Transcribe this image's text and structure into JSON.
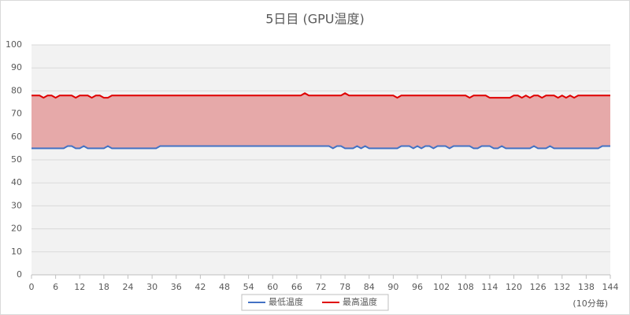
{
  "chart_data": {
    "type": "line",
    "title": "5日目 (GPU温度)",
    "x_unit_label": "(10分毎)",
    "x": [
      0,
      1,
      2,
      3,
      4,
      5,
      6,
      7,
      8,
      9,
      10,
      11,
      12,
      13,
      14,
      15,
      16,
      17,
      18,
      19,
      20,
      21,
      22,
      23,
      24,
      25,
      26,
      27,
      28,
      29,
      30,
      31,
      32,
      33,
      34,
      35,
      36,
      37,
      38,
      39,
      40,
      41,
      42,
      43,
      44,
      45,
      46,
      47,
      48,
      49,
      50,
      51,
      52,
      53,
      54,
      55,
      56,
      57,
      58,
      59,
      60,
      61,
      62,
      63,
      64,
      65,
      66,
      67,
      68,
      69,
      70,
      71,
      72,
      73,
      74,
      75,
      76,
      77,
      78,
      79,
      80,
      81,
      82,
      83,
      84,
      85,
      86,
      87,
      88,
      89,
      90,
      91,
      92,
      93,
      94,
      95,
      96,
      97,
      98,
      99,
      100,
      101,
      102,
      103,
      104,
      105,
      106,
      107,
      108,
      109,
      110,
      111,
      112,
      113,
      114,
      115,
      116,
      117,
      118,
      119,
      120,
      121,
      122,
      123,
      124,
      125,
      126,
      127,
      128,
      129,
      130,
      131,
      132,
      133,
      134,
      135,
      136,
      137,
      138,
      139,
      140,
      141,
      142,
      143,
      144
    ],
    "series": [
      {
        "name": "最低温度",
        "color": "#4472c4",
        "values": [
          55,
          55,
          55,
          55,
          55,
          55,
          55,
          55,
          55,
          56,
          56,
          55,
          55,
          56,
          55,
          55,
          55,
          55,
          55,
          56,
          55,
          55,
          55,
          55,
          55,
          55,
          55,
          55,
          55,
          55,
          55,
          55,
          56,
          56,
          56,
          56,
          56,
          56,
          56,
          56,
          56,
          56,
          56,
          56,
          56,
          56,
          56,
          56,
          56,
          56,
          56,
          56,
          56,
          56,
          56,
          56,
          56,
          56,
          56,
          56,
          56,
          56,
          56,
          56,
          56,
          56,
          56,
          56,
          56,
          56,
          56,
          56,
          56,
          56,
          56,
          55,
          56,
          56,
          55,
          55,
          55,
          56,
          55,
          56,
          55,
          55,
          55,
          55,
          55,
          55,
          55,
          55,
          56,
          56,
          56,
          55,
          56,
          55,
          56,
          56,
          55,
          56,
          56,
          56,
          55,
          56,
          56,
          56,
          56,
          56,
          55,
          55,
          56,
          56,
          56,
          55,
          55,
          56,
          55,
          55,
          55,
          55,
          55,
          55,
          55,
          56,
          55,
          55,
          55,
          56,
          55,
          55,
          55,
          55,
          55,
          55,
          55,
          55,
          55,
          55,
          55,
          55,
          56,
          56,
          56
        ]
      },
      {
        "name": "最高温度",
        "color": "#e00000",
        "values": [
          78,
          78,
          78,
          77,
          78,
          78,
          77,
          78,
          78,
          78,
          78,
          77,
          78,
          78,
          78,
          77,
          78,
          78,
          77,
          77,
          78,
          78,
          78,
          78,
          78,
          78,
          78,
          78,
          78,
          78,
          78,
          78,
          78,
          78,
          78,
          78,
          78,
          78,
          78,
          78,
          78,
          78,
          78,
          78,
          78,
          78,
          78,
          78,
          78,
          78,
          78,
          78,
          78,
          78,
          78,
          78,
          78,
          78,
          78,
          78,
          78,
          78,
          78,
          78,
          78,
          78,
          78,
          78,
          79,
          78,
          78,
          78,
          78,
          78,
          78,
          78,
          78,
          78,
          79,
          78,
          78,
          78,
          78,
          78,
          78,
          78,
          78,
          78,
          78,
          78,
          78,
          77,
          78,
          78,
          78,
          78,
          78,
          78,
          78,
          78,
          78,
          78,
          78,
          78,
          78,
          78,
          78,
          78,
          78,
          77,
          78,
          78,
          78,
          78,
          77,
          77,
          77,
          77,
          77,
          77,
          78,
          78,
          77,
          78,
          77,
          78,
          78,
          77,
          78,
          78,
          78,
          77,
          78,
          77,
          78,
          77,
          78,
          78,
          78,
          78,
          78,
          78,
          78,
          78,
          78
        ]
      }
    ],
    "area_fill": "#e6a9a9",
    "xlim": [
      0,
      144
    ],
    "xticks": [
      0,
      6,
      12,
      18,
      24,
      30,
      36,
      42,
      48,
      54,
      60,
      66,
      72,
      78,
      84,
      90,
      96,
      102,
      108,
      114,
      120,
      126,
      132,
      138,
      144
    ],
    "ylim": [
      0,
      100
    ],
    "yticks": [
      0,
      10,
      20,
      30,
      40,
      50,
      60,
      70,
      80,
      90,
      100
    ],
    "grid": true
  }
}
